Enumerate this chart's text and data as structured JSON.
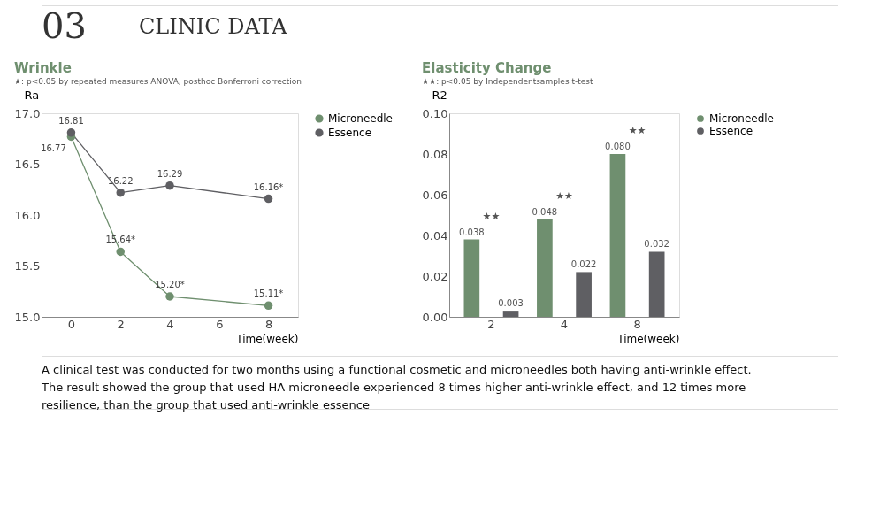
{
  "chart_data": [
    {
      "type": "other",
      "annotations": [
        "03",
        "CLINIC DATA",
        "A clinical test was conducted for two months using a functional cosmetic and microneedles both having anti-wrinkle effect. The result showed the group that used HA microneedle experienced 8 times higher anti-wrinkle effect, and 12 times more resilience, than the group that used anti-wrinkle essence"
      ]
    },
    {
      "type": "line",
      "title": "Wrinkle",
      "subtitle": "★: p<0.05 by repeated measures ANOVA, posthoc Bonferroni correction",
      "xlabel": "Time(week)",
      "ylabel": "Ra",
      "xlim": [
        -1.2,
        9.2
      ],
      "xticks": [
        0,
        2,
        4,
        6,
        8
      ],
      "ylim": [
        15,
        17
      ],
      "yticks": [
        {
          "value": 15,
          "label": "15.0"
        },
        {
          "value": 15.5,
          "label": "15.5"
        },
        {
          "value": 16,
          "label": "16.0"
        },
        {
          "value": 16.5,
          "label": "16.5"
        },
        {
          "value": 17,
          "label": "17.0"
        }
      ],
      "marker": "circle",
      "grid": false,
      "legend": "top right",
      "line_style": "solid",
      "series": [
        {
          "name": "Microneedle",
          "color": "#6f8f6f",
          "x": [
            0,
            2,
            4,
            8
          ],
          "values": [
            16.77,
            15.64,
            15.2,
            15.11
          ],
          "value_labels": [
            "16.77",
            "15.64*",
            "15.20*",
            "15.11*"
          ]
        },
        {
          "name": "Essence",
          "color": "#5f5f63",
          "x": [
            0,
            2,
            4,
            8
          ],
          "values": [
            16.81,
            16.22,
            16.29,
            16.16
          ],
          "value_labels": [
            "16.81",
            "16.22",
            "16.29",
            "16.16*"
          ]
        }
      ]
    },
    {
      "type": "bar",
      "title": "Elasticity Change",
      "subtitle": "★★: p<0.05 by Independentsamples t-test",
      "xlabel": "Time(week)",
      "ylabel": "R2",
      "categories": [
        "2",
        "4",
        "8"
      ],
      "ylim": [
        0,
        0.1
      ],
      "yticks": [
        {
          "value": 0,
          "label": "0.00"
        },
        {
          "value": 0.02,
          "label": "0.02"
        },
        {
          "value": 0.04,
          "label": "0.04"
        },
        {
          "value": 0.06,
          "label": "0.06"
        },
        {
          "value": 0.08,
          "label": "0.08"
        },
        {
          "value": 0.1,
          "label": "0.10"
        }
      ],
      "grid": false,
      "legend": "top right",
      "series": [
        {
          "name": "Microneedle",
          "color": "#6f8f6f",
          "values": [
            0.038,
            0.048,
            0.08
          ],
          "value_labels": [
            "0.038",
            "0.048",
            "0.080"
          ]
        },
        {
          "name": "Essence",
          "color": "#5f5f63",
          "values": [
            0.003,
            0.022,
            0.032
          ],
          "value_labels": [
            "0.003",
            "0.022",
            "0.032"
          ]
        }
      ],
      "annotations": [
        "★★",
        "★★",
        "★★"
      ]
    }
  ]
}
